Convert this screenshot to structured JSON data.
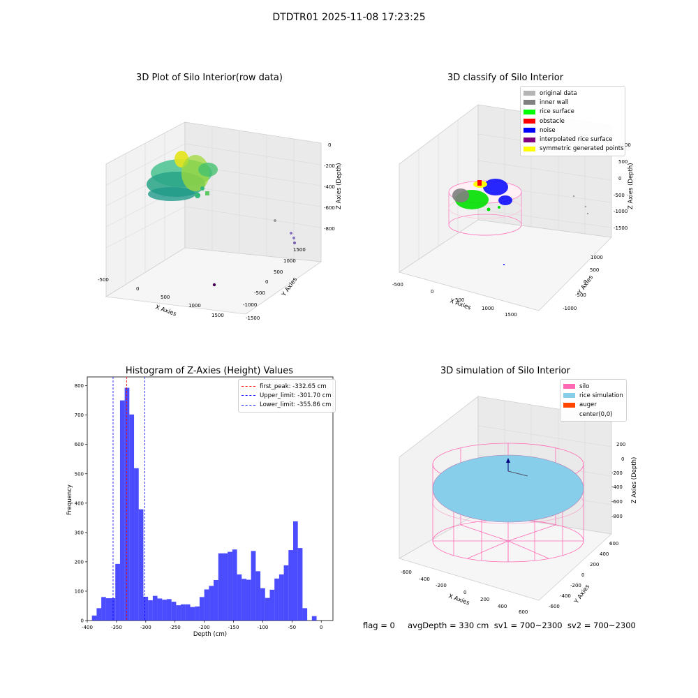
{
  "figure": {
    "suptitle": "DTDTR01 2025-11-08 17:23:25",
    "status_line": "flag = 0     avgDepth = 330 cm  sv1 = 700~2300  sv2 = 700~2300"
  },
  "panels": {
    "raw": {
      "title": "3D Plot of Silo Interior(row data)",
      "xlabel": "X Axies",
      "ylabel": "Y Axies",
      "zlabel": "Z Axies (Depth)",
      "xticks": [
        "-500",
        "0",
        "500",
        "1000",
        "1500"
      ],
      "yticks": [
        "1500",
        "1000",
        "500",
        "0",
        "-500",
        "-1000",
        "-1500"
      ],
      "zticks": [
        "0",
        "-200",
        "-400",
        "-600",
        "-800"
      ]
    },
    "classify": {
      "title": "3D classify of Silo Interior",
      "xlabel": "X Axies",
      "ylabel": "Y Axies",
      "zlabel": "Z Axies (Depth)",
      "xticks": [
        "-500",
        "0",
        "500",
        "1000",
        "1500"
      ],
      "yticks": [
        "1000",
        "500",
        "0",
        "-500",
        "-1000"
      ],
      "zticks": [
        "1000",
        "500",
        "0",
        "-500",
        "-1000",
        "-1500"
      ],
      "legend": [
        {
          "label": "original data",
          "color": "#b4b4b4"
        },
        {
          "label": "inner wall",
          "color": "#808080"
        },
        {
          "label": "rice surface",
          "color": "#00ff00"
        },
        {
          "label": "obstacle",
          "color": "#ff0000"
        },
        {
          "label": "noise",
          "color": "#0000ff"
        },
        {
          "label": "interpolated rice surface",
          "color": "#800080"
        },
        {
          "label": "symmetric generated points",
          "color": "#ffff00"
        }
      ]
    },
    "simulation": {
      "title": "3D simulation of Silo Interior",
      "xlabel": "X Axies",
      "ylabel": "Y Axies",
      "zlabel": "Z Axies (Depth)",
      "xticks": [
        "-600",
        "-400",
        "-200",
        "0",
        "200",
        "400",
        "600"
      ],
      "yticks": [
        "600",
        "400",
        "200",
        "0",
        "-200",
        "-400",
        "-600"
      ],
      "zticks": [
        "200",
        "0",
        "-200",
        "-400",
        "-600",
        "-800"
      ],
      "legend": [
        {
          "label": "silo",
          "color": "#ff69b4"
        },
        {
          "label": "rice simulation",
          "color": "#87ceeb"
        },
        {
          "label": "auger",
          "color": "#ff4500"
        },
        {
          "label": "center(0,0)",
          "color": "none"
        }
      ]
    }
  },
  "chart_data": {
    "type": "bar",
    "title": "Histogram of Z-Axies (Height) Values",
    "xlabel": "Depth (cm)",
    "ylabel": "Frequency",
    "xlim": [
      -400,
      20
    ],
    "ylim": [
      0,
      830
    ],
    "xticks": [
      -400,
      -350,
      -300,
      -250,
      -200,
      -150,
      -100,
      -50,
      0
    ],
    "yticks": [
      0,
      100,
      200,
      300,
      400,
      500,
      600,
      700,
      800
    ],
    "bar_color": "#0000ff",
    "bin_width": 8,
    "bin_start": -392,
    "values": [
      17,
      42,
      80,
      76,
      76,
      193,
      750,
      793,
      702,
      519,
      379,
      81,
      69,
      84,
      75,
      71,
      73,
      64,
      52,
      55,
      55,
      46,
      48,
      80,
      106,
      118,
      138,
      229,
      229,
      234,
      242,
      157,
      142,
      139,
      237,
      168,
      110,
      77,
      105,
      143,
      157,
      188,
      240,
      338,
      247,
      42,
      0,
      15
    ],
    "reference_lines": [
      {
        "label": "first_peak: -332.65 cm",
        "x": -332.65,
        "color": "#ff0000"
      },
      {
        "label": "Upper_limit: -301.70 cm",
        "x": -301.7,
        "color": "#0000ff"
      },
      {
        "label": "Lower_limit: -355.86 cm",
        "x": -355.86,
        "color": "#0000ff"
      }
    ],
    "legend_position": "upper right"
  }
}
